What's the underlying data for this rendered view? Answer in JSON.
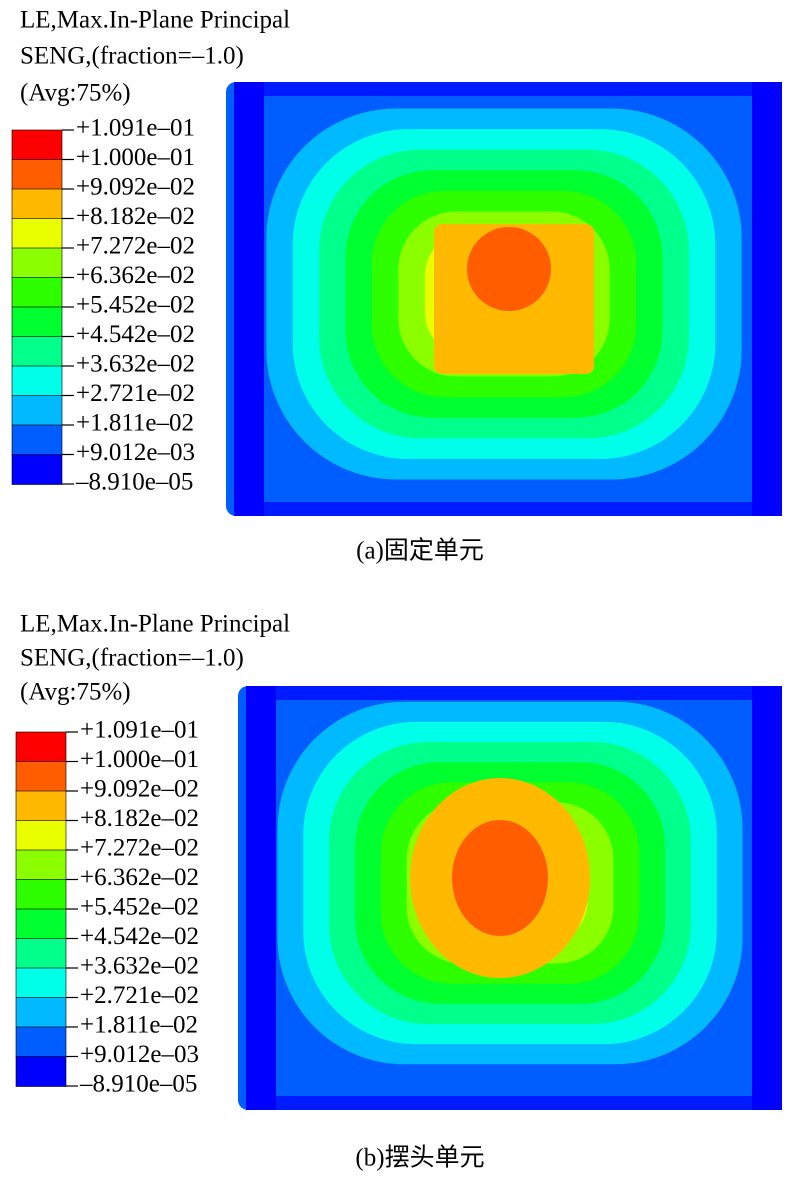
{
  "panels": [
    {
      "title_lines": [
        "LE,Max.In-Plane Principal",
        "SENG,(fraction=–1.0)",
        "(Avg:75%)"
      ],
      "legend_labels": [
        "+1.091e–01",
        "+1.000e–01",
        "+9.092e–02",
        "+8.182e–02",
        "+7.272e–02",
        "+6.362e–02",
        "+5.452e–02",
        "+4.542e–02",
        "+3.632e–02",
        "+2.721e–02",
        "+1.811e–02",
        "+9.012e–03",
        "–8.910e–05"
      ],
      "caption": "(a)固定单元"
    },
    {
      "title_lines": [
        "LE,Max.In-Plane Principal",
        "SENG,(fraction=–1.0)",
        "(Avg:75%)"
      ],
      "legend_labels": [
        "+1.091e–01",
        "+1.000e–01",
        "+9.092e–02",
        "+8.182e–02",
        "+7.272e–02",
        "+6.362e–02",
        "+5.452e–02",
        "+4.542e–02",
        "+3.632e–02",
        "+2.721e–02",
        "+1.811e–02",
        "+9.012e–03",
        "–8.910e–05"
      ],
      "caption": "(b)摆头单元"
    }
  ],
  "legend_colors": [
    "#ff0000",
    "#ff5d00",
    "#ffb900",
    "#e9ff00",
    "#8bff00",
    "#2eff00",
    "#00ff2e",
    "#00ff8b",
    "#00ffe8",
    "#00b9ff",
    "#005dff",
    "#0000ff"
  ]
}
